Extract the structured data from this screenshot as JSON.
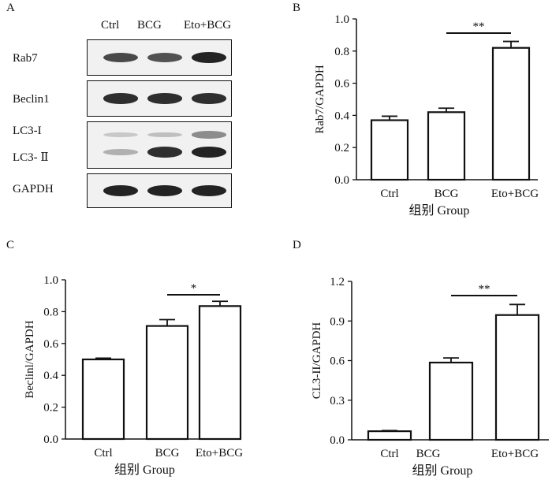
{
  "panel_letters": {
    "a": "A",
    "b": "B",
    "c": "C",
    "d": "D"
  },
  "blot": {
    "lanes": [
      "Ctrl",
      "BCG",
      "Eto+BCG"
    ],
    "rows": [
      {
        "label": "Rab7",
        "intensity": [
          0.75,
          0.7,
          0.95
        ]
      },
      {
        "label": "Beclin1",
        "intensity": [
          0.9,
          0.9,
          0.9
        ]
      },
      {
        "label": "LC3-I",
        "intensity": [
          0.08,
          0.12,
          0.4
        ]
      },
      {
        "label": "LC3- Ⅱ",
        "intensity": [
          0.2,
          0.9,
          0.95
        ]
      },
      {
        "label": "GAPDH",
        "intensity": [
          0.95,
          0.95,
          0.95
        ]
      }
    ]
  },
  "chart_data": [
    {
      "panel": "B",
      "type": "bar",
      "categories": [
        "Ctrl",
        "BCG",
        "Eto+BCG"
      ],
      "values": [
        0.37,
        0.42,
        0.82
      ],
      "errors": [
        0.025,
        0.025,
        0.04
      ],
      "ylabel": "Rab7/GAPDH",
      "xlabel": "组别 Group",
      "ylim": [
        0,
        1.0
      ],
      "yticks": [
        "0.0",
        "0.2",
        "0.4",
        "0.6",
        "0.8",
        "1.0"
      ],
      "significance": {
        "from": 1,
        "to": 2,
        "label": "**"
      }
    },
    {
      "panel": "C",
      "type": "bar",
      "categories": [
        "Ctrl",
        "BCG",
        "Eto+BCG"
      ],
      "values": [
        0.5,
        0.71,
        0.835
      ],
      "errors": [
        0.008,
        0.04,
        0.03
      ],
      "ylabel": "Beclinl/GAPDH",
      "xlabel": "组别 Group",
      "ylim": [
        0,
        1.0
      ],
      "yticks": [
        "0.0",
        "0.2",
        "0.4",
        "0.6",
        "0.8",
        "1.0"
      ],
      "significance": {
        "from": 1,
        "to": 2,
        "label": "*"
      }
    },
    {
      "panel": "D",
      "type": "bar",
      "categories": [
        "Ctrl",
        "BCG",
        "Eto+BCG"
      ],
      "values": [
        0.065,
        0.585,
        0.945
      ],
      "errors": [
        0.005,
        0.035,
        0.08
      ],
      "ylabel": "CL3-II/GAPDH",
      "xlabel": "组别 Group",
      "ylim": [
        0,
        1.2
      ],
      "yticks": [
        "0.0",
        "0.3",
        "0.6",
        "0.9",
        "1.2"
      ],
      "significance": {
        "from": 1,
        "to": 2,
        "label": "**"
      }
    }
  ]
}
